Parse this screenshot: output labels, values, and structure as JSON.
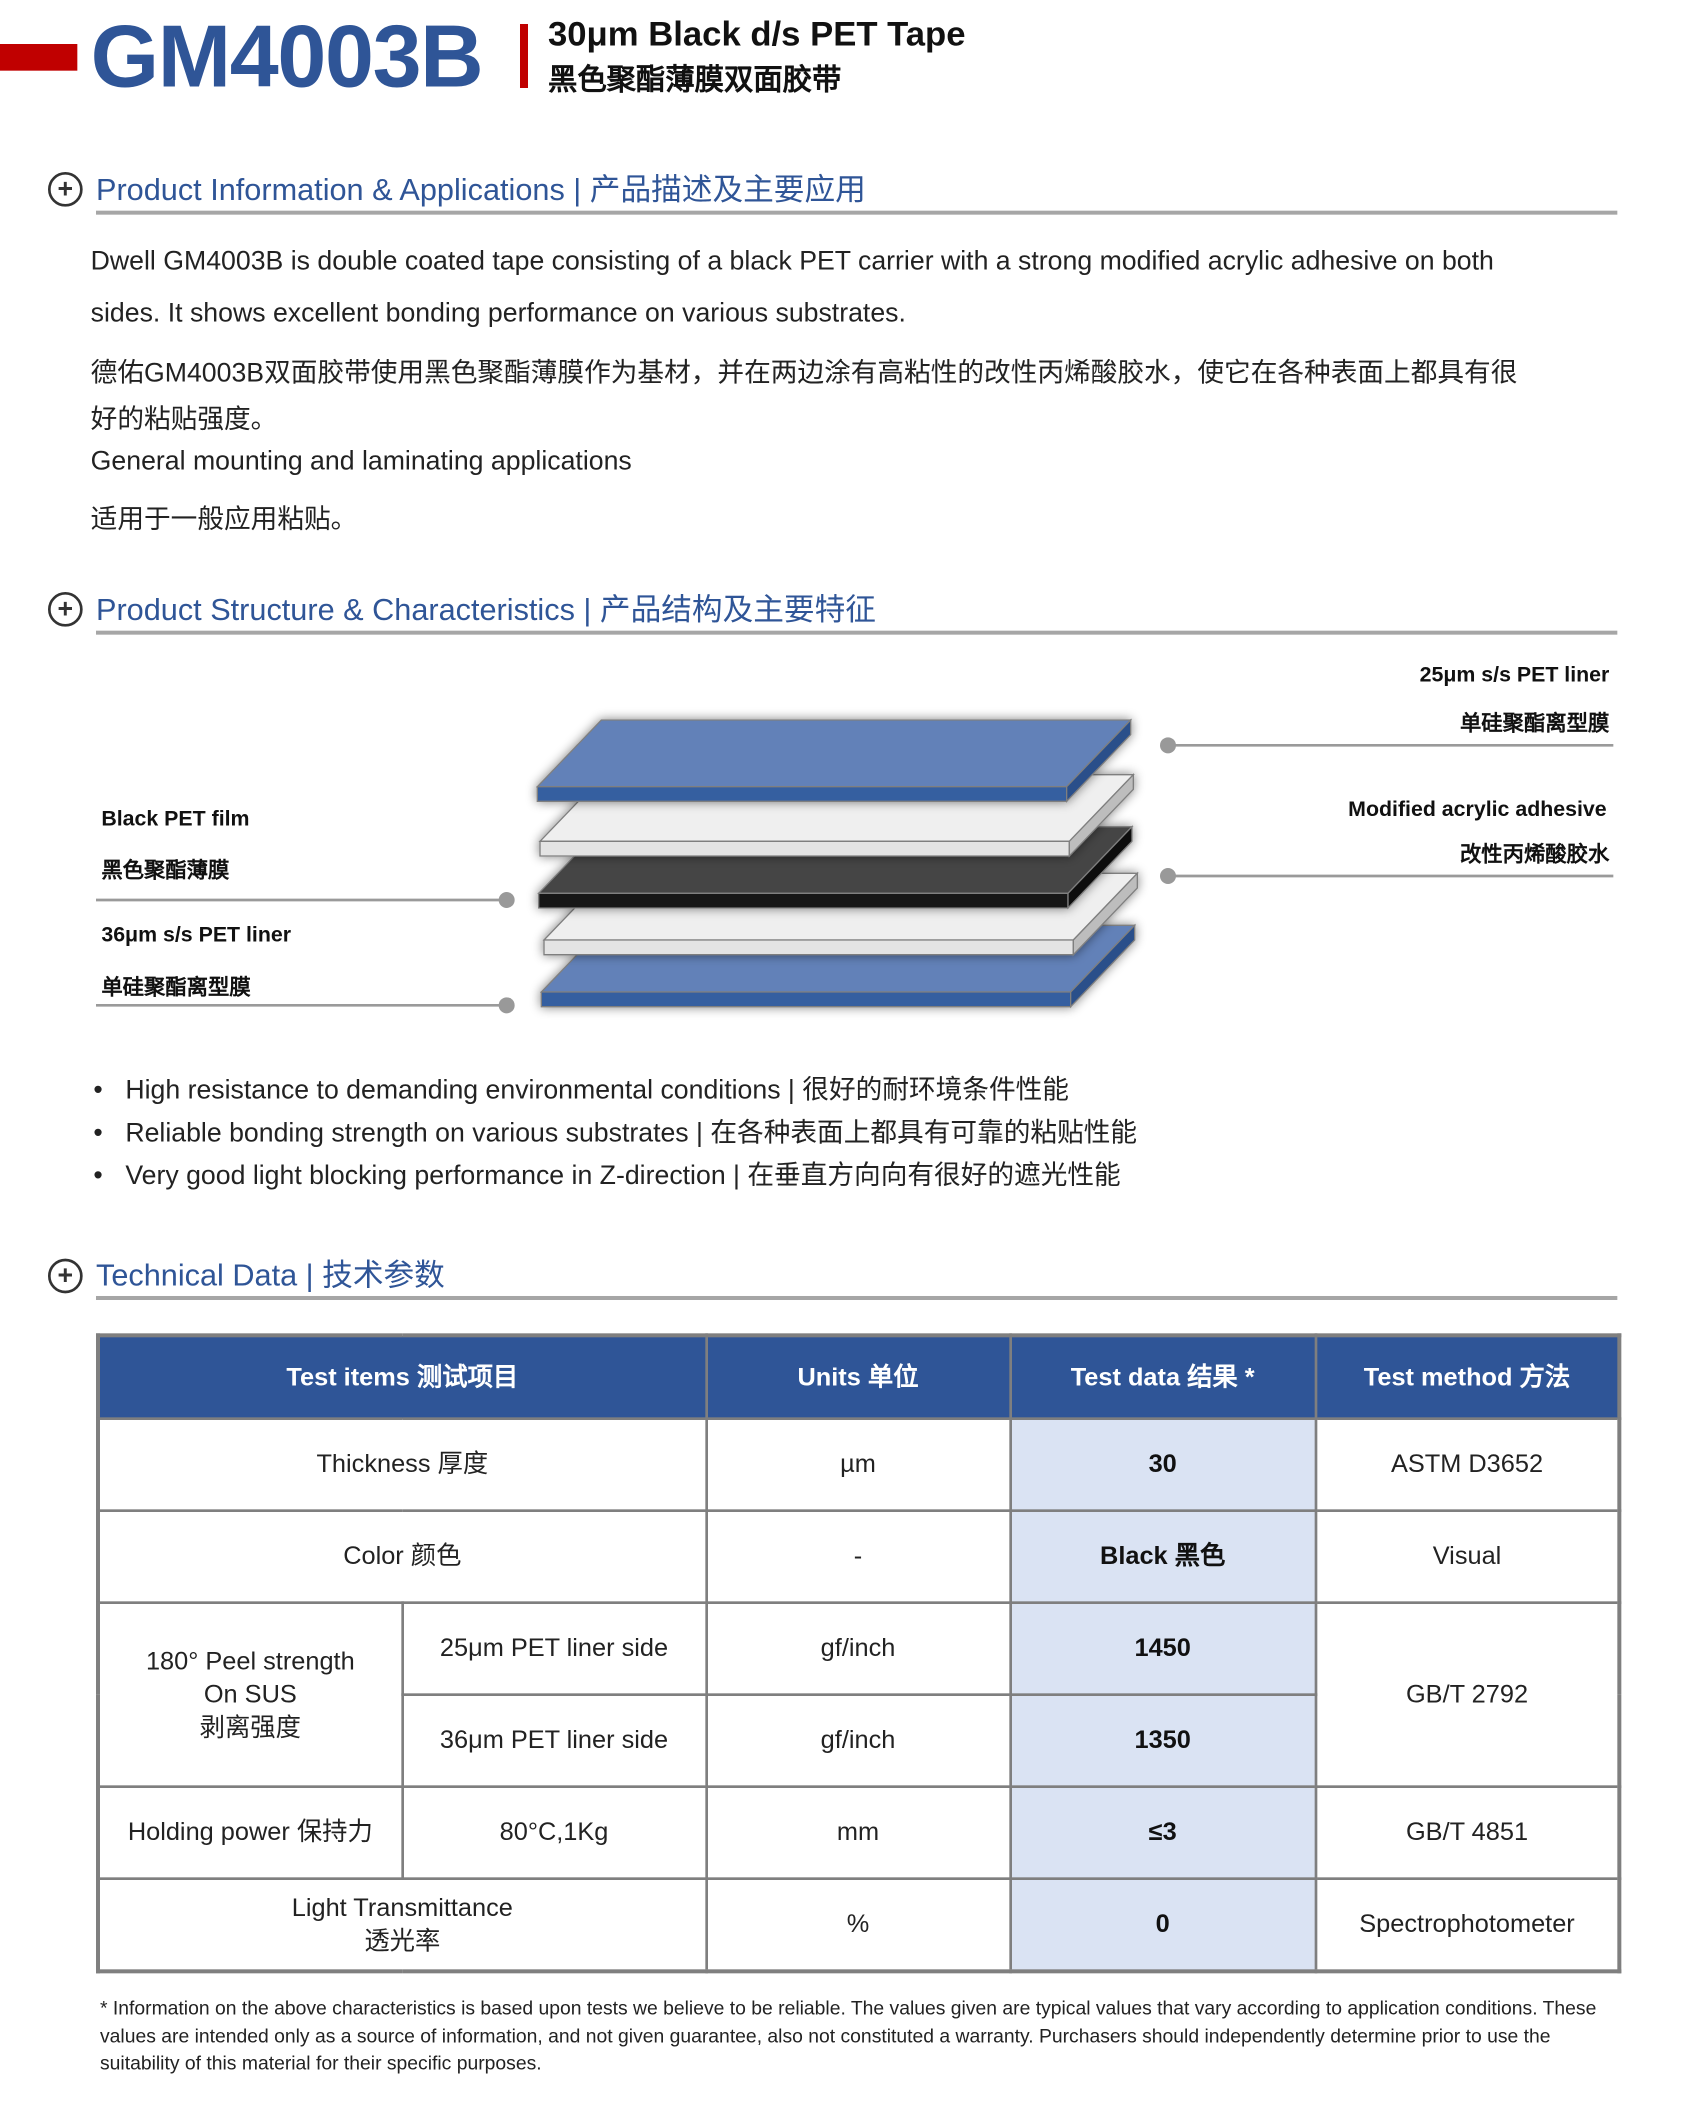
{
  "header": {
    "model": "GM4003B",
    "title_en": "30μm Black d/s PET Tape",
    "title_cn": "黑色聚酯薄膜双面胶带"
  },
  "sections": {
    "info": {
      "title": "Product Information & Applications | 产品描述及主要应用",
      "icon": "plus-circle-icon"
    },
    "structure": {
      "title": "Product Structure & Characteristics | 产品结构及主要特征",
      "icon": "plus-circle-icon"
    },
    "technical": {
      "title": "Technical Data | 技术参数",
      "icon": "plus-circle-icon"
    }
  },
  "description": {
    "en_line1": "Dwell GM4003B is double coated tape consisting of a black PET carrier with a strong modified acrylic adhesive on both",
    "en_line2": "sides. It shows excellent bonding performance on various substrates.",
    "cn_line1": "德佑GM4003B双面胶带使用黑色聚酯薄膜作为基材，并在两边涂有高粘性的改性丙烯酸胶水，使它在各种表面上都具有很",
    "cn_line2": "好的粘贴强度。",
    "app_en": "General mounting and laminating applications",
    "app_cn": "适用于一般应用粘贴。"
  },
  "diagram": {
    "colors": {
      "liner": "#6281b8",
      "liner_edge": "#345ea0",
      "adhesive": "#efefef",
      "film": "#444444"
    },
    "labels": {
      "top_liner_en": "25μm s/s PET liner",
      "top_liner_cn": "单硅聚酯离型膜",
      "adhesive_en": "Modified acrylic adhesive",
      "adhesive_cn": "改性丙烯酸胶水",
      "film_en": "Black PET film",
      "film_cn": "黑色聚酯薄膜",
      "bottom_liner_en": "36μm s/s PET liner",
      "bottom_liner_cn": "单硅聚酯离型膜"
    }
  },
  "bullets": [
    "High resistance to demanding environmental conditions | 很好的耐环境条件性能",
    "Reliable bonding strength on various substrates | 在各种表面上都具有可靠的粘贴性能",
    "Very good light blocking performance in Z-direction | 在垂直方向向有很好的遮光性能"
  ],
  "table": {
    "headers": [
      "Test items 测试项目",
      "Units 单位",
      "Test data 结果 *",
      "Test method 方法"
    ],
    "rows": {
      "thickness": {
        "item": "Thickness 厚度",
        "unit": "µm",
        "value": "30",
        "method": "ASTM D3652"
      },
      "color": {
        "item": "Color 颜色",
        "unit": "-",
        "value": "Black 黑色",
        "method": "Visual"
      },
      "peel": {
        "item_l1": "180° Peel strength",
        "item_l2": "On SUS",
        "item_l3": "剥离强度",
        "method": "GB/T 2792",
        "sub": [
          {
            "cond": "25μm PET liner side",
            "unit": "gf/inch",
            "value": "1450"
          },
          {
            "cond": "36μm PET liner side",
            "unit": "gf/inch",
            "value": "1350"
          }
        ]
      },
      "holding": {
        "item": "Holding power 保持力",
        "cond": "80°C,1Kg",
        "unit": "mm",
        "value": "≤3",
        "method": "GB/T 4851"
      },
      "light": {
        "item_l1": "Light Transmittance",
        "item_l2": "透光率",
        "unit": "%",
        "value": "0",
        "method": "Spectrophotometer"
      }
    }
  },
  "footnote": "* Information on the above characteristics is based upon tests we believe to be reliable. The values given are typical values that vary according to application conditions. These values are intended only as a source of information, and not given guarantee, also not constituted a warranty. Purchasers should independently determine prior to use the suitability of this material for their specific purposes."
}
